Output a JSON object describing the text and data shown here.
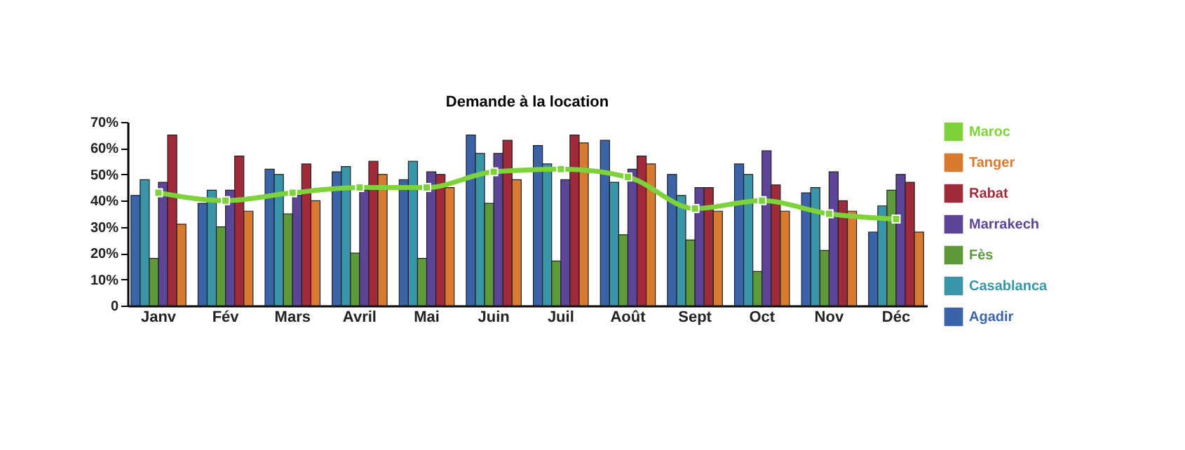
{
  "chart_data": {
    "type": "bar",
    "title": "Demande à la location",
    "categories": [
      "Janv",
      "Fév",
      "Mars",
      "Avril",
      "Mai",
      "Juin",
      "Juil",
      "Août",
      "Sept",
      "Oct",
      "Nov",
      "Déc"
    ],
    "series": [
      {
        "name": "Agadir",
        "color": "#3a63a8",
        "values": [
          42,
          39,
          52,
          51,
          48,
          65,
          61,
          63,
          50,
          54,
          43,
          28
        ]
      },
      {
        "name": "Casablanca",
        "color": "#3a95a8",
        "values": [
          48,
          44,
          50,
          53,
          55,
          58,
          54,
          47,
          42,
          50,
          45,
          38
        ]
      },
      {
        "name": "Fès",
        "color": "#5e9a3a",
        "values": [
          18,
          30,
          35,
          20,
          18,
          39,
          17,
          27,
          25,
          13,
          21,
          44
        ]
      },
      {
        "name": "Marrakech",
        "color": "#5c4496",
        "values": [
          47,
          44,
          42,
          44,
          51,
          58,
          48,
          52,
          45,
          59,
          51,
          50
        ]
      },
      {
        "name": "Rabat",
        "color": "#9e2a3a",
        "values": [
          65,
          57,
          54,
          55,
          50,
          63,
          65,
          57,
          45,
          46,
          40,
          47
        ]
      },
      {
        "name": "Tanger",
        "color": "#d87a30",
        "values": [
          31,
          36,
          40,
          50,
          45,
          48,
          62,
          54,
          36,
          36,
          36,
          28
        ]
      },
      {
        "name": "Maroc",
        "type": "line",
        "color": "#7ed33a",
        "values": [
          43,
          40,
          43,
          45,
          45,
          51,
          52,
          49,
          37,
          40,
          35,
          33
        ]
      }
    ],
    "ylim": [
      0,
      70
    ],
    "yticks": [
      {
        "value": 0,
        "label": "0"
      },
      {
        "value": 10,
        "label": "10%"
      },
      {
        "value": 20,
        "label": "20%"
      },
      {
        "value": 30,
        "label": "30%"
      },
      {
        "value": 40,
        "label": "40%"
      },
      {
        "value": 50,
        "label": "50%"
      },
      {
        "value": 60,
        "label": "60%"
      },
      {
        "value": 70,
        "label": "70%"
      }
    ],
    "grid": false,
    "legend": "right",
    "marker": "square",
    "line_style": "solid"
  }
}
